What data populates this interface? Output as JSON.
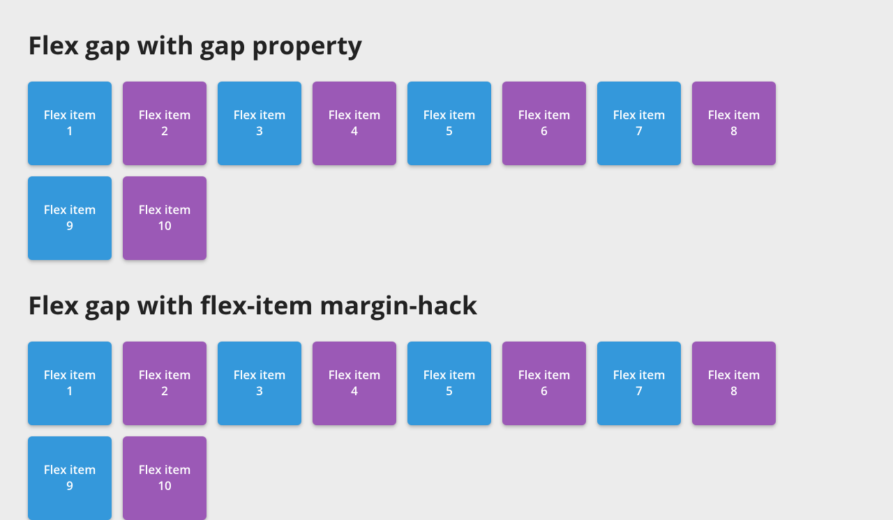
{
  "colors": {
    "background": "#ececec",
    "blue": "#3498db",
    "purple": "#9b59b6",
    "text_white": "#ffffff",
    "heading": "#222222"
  },
  "typography": {
    "heading_fontsize": 36,
    "heading_weight": 700,
    "item_fontsize": 17,
    "item_weight": 600
  },
  "layout": {
    "item_width": 120,
    "item_height": 120,
    "gap": 16,
    "container_width": 1090,
    "border_radius": 6,
    "items_per_row": 8
  },
  "sections": [
    {
      "heading": "Flex gap with gap property",
      "items": [
        {
          "label": "Flex item 1",
          "color": "blue"
        },
        {
          "label": "Flex item 2",
          "color": "purple"
        },
        {
          "label": "Flex item 3",
          "color": "blue"
        },
        {
          "label": "Flex item 4",
          "color": "purple"
        },
        {
          "label": "Flex item 5",
          "color": "blue"
        },
        {
          "label": "Flex item 6",
          "color": "purple"
        },
        {
          "label": "Flex item 7",
          "color": "blue"
        },
        {
          "label": "Flex item 8",
          "color": "purple"
        },
        {
          "label": "Flex item 9",
          "color": "blue"
        },
        {
          "label": "Flex item 10",
          "color": "purple"
        }
      ]
    },
    {
      "heading": "Flex gap with flex-item margin-hack",
      "items": [
        {
          "label": "Flex item 1",
          "color": "blue"
        },
        {
          "label": "Flex item 2",
          "color": "purple"
        },
        {
          "label": "Flex item 3",
          "color": "blue"
        },
        {
          "label": "Flex item 4",
          "color": "purple"
        },
        {
          "label": "Flex item 5",
          "color": "blue"
        },
        {
          "label": "Flex item 6",
          "color": "purple"
        },
        {
          "label": "Flex item 7",
          "color": "blue"
        },
        {
          "label": "Flex item 8",
          "color": "purple"
        },
        {
          "label": "Flex item 9",
          "color": "blue"
        },
        {
          "label": "Flex item 10",
          "color": "purple"
        }
      ]
    }
  ]
}
